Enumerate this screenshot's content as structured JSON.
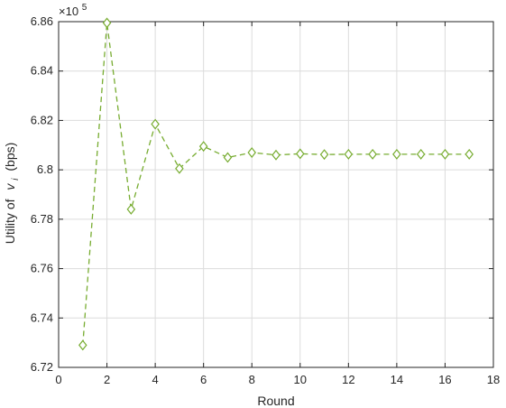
{
  "chart_data": {
    "type": "line",
    "title": "",
    "xlabel": "Round",
    "ylabel_prefix": "Utility of",
    "ylabel_var": "v",
    "ylabel_sub": "i",
    "ylabel_suffix": "(bps)",
    "y_multiplier_base": "×10",
    "y_multiplier_exp": "5",
    "xlim": [
      0,
      18
    ],
    "ylim": [
      6.72,
      6.86
    ],
    "xticks": [
      "0",
      "2",
      "4",
      "6",
      "8",
      "10",
      "12",
      "14",
      "16",
      "18"
    ],
    "yticks": [
      "6.72",
      "6.74",
      "6.76",
      "6.78",
      "6.8",
      "6.82",
      "6.84",
      "6.86"
    ],
    "grid": true,
    "series": [
      {
        "color": "#77ac30",
        "line_style": "dashed",
        "marker": "diamond",
        "x": [
          1,
          2,
          3,
          4,
          5,
          6,
          7,
          8,
          9,
          10,
          11,
          12,
          13,
          14,
          15,
          16,
          17
        ],
        "y": [
          6.729,
          6.8595,
          6.784,
          6.8185,
          6.8005,
          6.8095,
          6.805,
          6.807,
          6.806,
          6.8065,
          6.8062,
          6.8063,
          6.8063,
          6.8063,
          6.8063,
          6.8063,
          6.8063
        ]
      }
    ]
  }
}
